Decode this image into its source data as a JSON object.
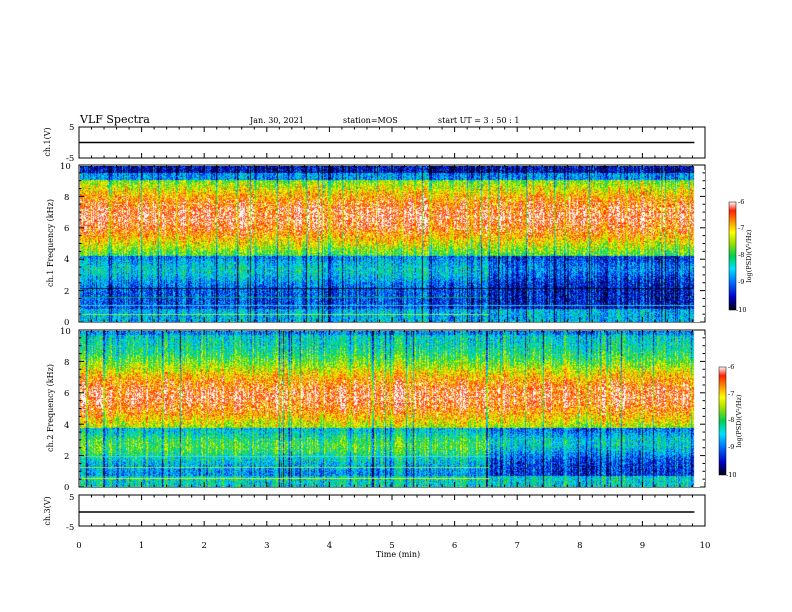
{
  "header": {
    "title": "VLF Spectra",
    "date": "Jan. 30, 2021",
    "station": "station=MOS",
    "start": "start  UT  =   3  : 50 : 1"
  },
  "chart_data": [
    {
      "type": "line",
      "panel": "ch1-waveform",
      "ylabel": "ch.1(V)",
      "ylim": [
        -5,
        5
      ],
      "yticks": [
        "5",
        "-5"
      ],
      "xlim": [
        0,
        10
      ],
      "series": [
        {
          "x": [
            0,
            9.83
          ],
          "values": [
            0,
            0
          ]
        }
      ]
    },
    {
      "type": "heatmap",
      "panel": "ch1-spectrogram",
      "ylabel": "ch.1  Frequency (kHz)",
      "ylim": [
        0,
        10
      ],
      "yticks": [
        "0",
        "2",
        "4",
        "6",
        "8",
        "10"
      ],
      "xlim": [
        0,
        10
      ],
      "data_end_min": 9.83,
      "colorbar": {
        "label": "log(PSD)(V²/Hz)",
        "range": [
          -10,
          -6
        ],
        "ticks": [
          "-6",
          "-7",
          "-8",
          "-9",
          "-10"
        ]
      }
    },
    {
      "type": "heatmap",
      "panel": "ch2-spectrogram",
      "ylabel": "ch.2  Frequency (kHz)",
      "ylim": [
        0,
        10
      ],
      "yticks": [
        "0",
        "2",
        "4",
        "6",
        "8",
        "10"
      ],
      "xlim": [
        0,
        10
      ],
      "data_end_min": 9.83,
      "colorbar": {
        "label": "log(PSD)(V²/Hz)",
        "range": [
          -10,
          -6
        ],
        "ticks": [
          "-6",
          "-7",
          "-8",
          "-9",
          "-10"
        ]
      }
    },
    {
      "type": "line",
      "panel": "ch3-waveform",
      "ylabel": "ch.3(V)",
      "ylim": [
        -5,
        5
      ],
      "yticks": [
        "5",
        "-5"
      ],
      "xlim": [
        0,
        10
      ],
      "xlabel": "Time  (min)",
      "xticks": [
        "0",
        "1",
        "2",
        "3",
        "4",
        "5",
        "6",
        "7",
        "8",
        "9",
        "10"
      ],
      "series": [
        {
          "x": [
            0,
            9.83
          ],
          "values": [
            0,
            0
          ]
        }
      ]
    }
  ]
}
